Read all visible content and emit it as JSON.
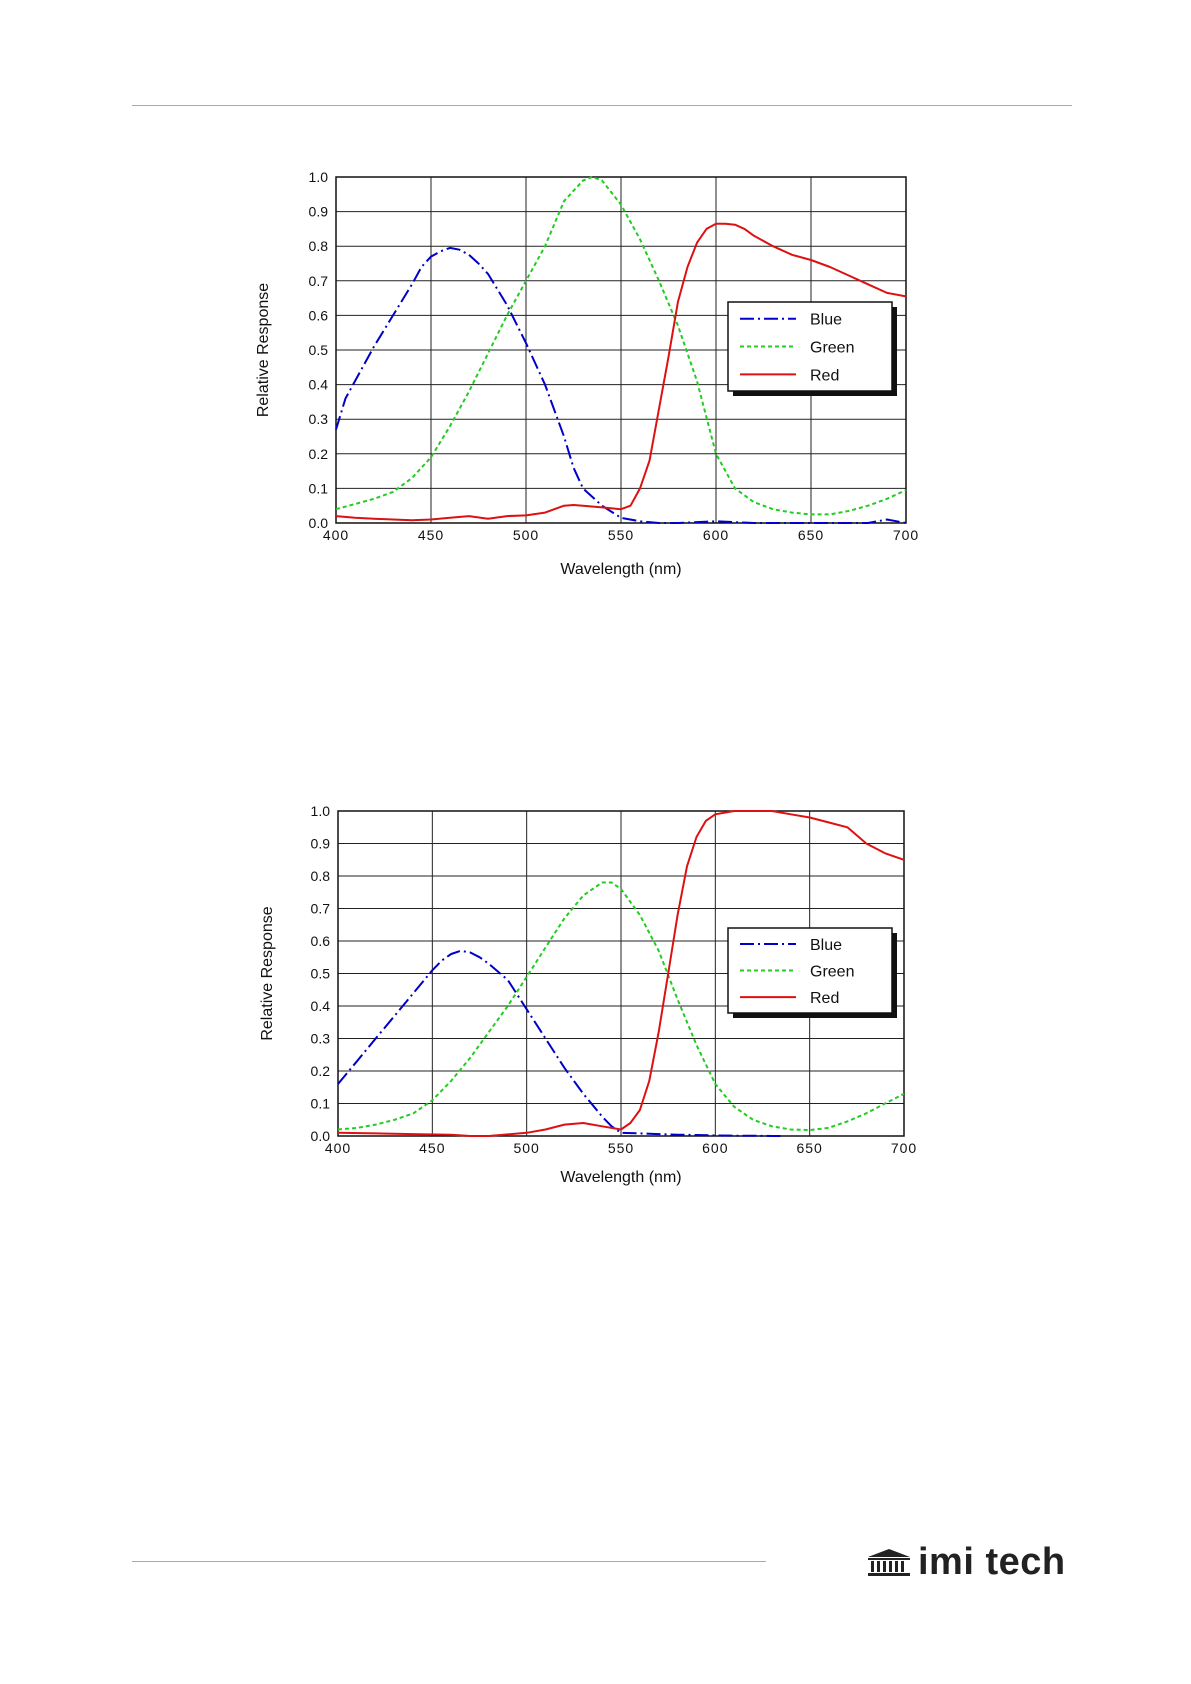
{
  "logo": {
    "text": "imi tech",
    "icon": "building-columns-icon"
  },
  "chart_data": [
    {
      "type": "line",
      "title": "",
      "xlabel": "Wavelength (nm)",
      "ylabel": "Relative Response",
      "xlim": [
        400,
        700
      ],
      "ylim": [
        0,
        1.0
      ],
      "xticks": [
        400,
        450,
        500,
        550,
        600,
        650,
        700
      ],
      "yticks": [
        0.0,
        0.1,
        0.2,
        0.3,
        0.4,
        0.5,
        0.6,
        0.7,
        0.8,
        0.9,
        1.0
      ],
      "grid": true,
      "legend_position": "right",
      "series": [
        {
          "name": "Blue",
          "color": "#0000c8",
          "style": "dashdot",
          "x": [
            400,
            405,
            410,
            420,
            430,
            440,
            445,
            450,
            455,
            460,
            465,
            470,
            475,
            480,
            490,
            500,
            510,
            520,
            525,
            530,
            540,
            550,
            560,
            570,
            580,
            600,
            620,
            650,
            680,
            690,
            700
          ],
          "y": [
            0.27,
            0.36,
            0.41,
            0.51,
            0.6,
            0.69,
            0.74,
            0.77,
            0.785,
            0.795,
            0.79,
            0.775,
            0.75,
            0.72,
            0.63,
            0.52,
            0.4,
            0.25,
            0.16,
            0.1,
            0.05,
            0.015,
            0.005,
            0.0,
            0.0,
            0.005,
            0.0,
            0.0,
            0.0,
            0.01,
            0.0
          ]
        },
        {
          "name": "Green",
          "color": "#22cc22",
          "style": "dotted",
          "x": [
            400,
            410,
            420,
            430,
            440,
            450,
            460,
            470,
            480,
            490,
            500,
            510,
            520,
            530,
            535,
            540,
            550,
            560,
            570,
            580,
            590,
            600,
            610,
            620,
            630,
            640,
            650,
            660,
            670,
            680,
            690,
            700
          ],
          "y": [
            0.04,
            0.055,
            0.07,
            0.09,
            0.13,
            0.19,
            0.28,
            0.38,
            0.49,
            0.6,
            0.7,
            0.8,
            0.93,
            0.99,
            1.0,
            0.99,
            0.92,
            0.82,
            0.7,
            0.57,
            0.41,
            0.2,
            0.1,
            0.06,
            0.04,
            0.03,
            0.025,
            0.025,
            0.035,
            0.05,
            0.07,
            0.095
          ]
        },
        {
          "name": "Red",
          "color": "#dd1111",
          "style": "solid",
          "x": [
            400,
            410,
            420,
            430,
            440,
            450,
            460,
            470,
            480,
            490,
            500,
            510,
            520,
            525,
            530,
            540,
            550,
            555,
            560,
            565,
            570,
            575,
            580,
            585,
            590,
            595,
            600,
            605,
            610,
            615,
            620,
            630,
            640,
            650,
            660,
            670,
            680,
            690,
            700
          ],
          "y": [
            0.02,
            0.015,
            0.012,
            0.01,
            0.008,
            0.01,
            0.015,
            0.02,
            0.012,
            0.02,
            0.022,
            0.03,
            0.05,
            0.052,
            0.05,
            0.045,
            0.04,
            0.05,
            0.1,
            0.18,
            0.33,
            0.48,
            0.64,
            0.74,
            0.81,
            0.85,
            0.865,
            0.865,
            0.862,
            0.85,
            0.83,
            0.8,
            0.775,
            0.76,
            0.74,
            0.715,
            0.69,
            0.665,
            0.655
          ]
        }
      ]
    },
    {
      "type": "line",
      "title": "",
      "xlabel": "Wavelength (nm)",
      "ylabel": "Relative Response",
      "xlim": [
        400,
        700
      ],
      "ylim": [
        0,
        1.0
      ],
      "xticks": [
        400,
        450,
        500,
        550,
        600,
        650,
        700
      ],
      "yticks": [
        0.0,
        0.1,
        0.2,
        0.3,
        0.4,
        0.5,
        0.6,
        0.7,
        0.8,
        0.9,
        1.0
      ],
      "grid": true,
      "legend_position": "right",
      "series": [
        {
          "name": "Blue",
          "color": "#0000c8",
          "style": "dashdot",
          "x": [
            400,
            410,
            420,
            430,
            440,
            450,
            455,
            460,
            465,
            470,
            475,
            480,
            490,
            500,
            510,
            520,
            530,
            540,
            545,
            550,
            560,
            570,
            580,
            590,
            600,
            610,
            620,
            630,
            635
          ],
          "y": [
            0.16,
            0.23,
            0.3,
            0.37,
            0.44,
            0.51,
            0.54,
            0.56,
            0.57,
            0.565,
            0.55,
            0.53,
            0.48,
            0.39,
            0.3,
            0.21,
            0.13,
            0.06,
            0.03,
            0.01,
            0.008,
            0.006,
            0.004,
            0.003,
            0.002,
            0.001,
            0.001,
            0.0,
            0.0
          ]
        },
        {
          "name": "Green",
          "color": "#22cc22",
          "style": "dotted",
          "x": [
            400,
            410,
            420,
            430,
            440,
            450,
            460,
            470,
            480,
            490,
            500,
            510,
            520,
            530,
            540,
            545,
            550,
            560,
            570,
            580,
            590,
            600,
            610,
            620,
            630,
            640,
            650,
            660,
            670,
            680,
            690,
            700
          ],
          "y": [
            0.02,
            0.025,
            0.035,
            0.05,
            0.07,
            0.11,
            0.17,
            0.24,
            0.32,
            0.4,
            0.49,
            0.58,
            0.67,
            0.74,
            0.78,
            0.78,
            0.76,
            0.68,
            0.57,
            0.42,
            0.28,
            0.16,
            0.09,
            0.05,
            0.03,
            0.02,
            0.018,
            0.025,
            0.045,
            0.07,
            0.1,
            0.13
          ]
        },
        {
          "name": "Red",
          "color": "#dd1111",
          "style": "solid",
          "x": [
            400,
            420,
            440,
            460,
            470,
            480,
            490,
            500,
            510,
            520,
            530,
            540,
            550,
            555,
            560,
            565,
            570,
            575,
            580,
            585,
            590,
            595,
            600,
            605,
            610,
            620,
            630,
            640,
            650,
            660,
            670,
            680,
            690,
            700
          ],
          "y": [
            0.01,
            0.008,
            0.006,
            0.004,
            0.0,
            0.0,
            0.005,
            0.01,
            0.02,
            0.035,
            0.04,
            0.03,
            0.02,
            0.04,
            0.08,
            0.17,
            0.32,
            0.5,
            0.68,
            0.83,
            0.92,
            0.97,
            0.99,
            0.995,
            1.0,
            1.0,
            1.0,
            0.99,
            0.98,
            0.965,
            0.95,
            0.9,
            0.87,
            0.85
          ]
        }
      ]
    }
  ]
}
